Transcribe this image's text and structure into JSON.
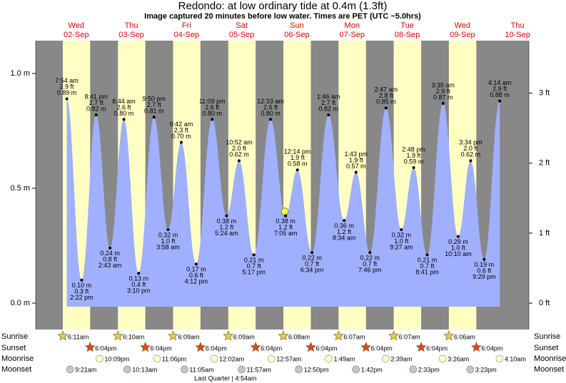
{
  "chart_data": {
    "type": "tide",
    "title": "Redondo: at low  ordinary tide at 0.4m (1.3ft)",
    "subtitle": "Image captured 20 minutes before low water. Times are PET (UTC −5.0hrs)",
    "ylim": [
      -0.115,
      1.143
    ],
    "yticks": [
      {
        "value": 0,
        "label": "0.0 m"
      },
      {
        "value": 0.5,
        "label": "0.5 m"
      },
      {
        "value": 1.0,
        "label": "1.0 m"
      }
    ],
    "y2lim": [
      -0.377,
      3.75
    ],
    "y2ticks": [
      {
        "value": 0,
        "label": "0 ft"
      },
      {
        "value": 1,
        "label": "1 ft"
      },
      {
        "value": 2,
        "label": "2 ft"
      },
      {
        "value": 3,
        "label": "3 ft"
      }
    ],
    "color": "#a0b0ff",
    "night_color": "#888888",
    "day_color": "#ffffc4",
    "row_labels": {
      "sunrise": "Sunrise",
      "sunset": "Sunset",
      "moonrise": "Moonrise",
      "moonset": "Moonset"
    },
    "days": [
      {
        "weekday": "Wed",
        "date": "02-Sep",
        "sunrise": "6:11am",
        "sunset": "6:04pm",
        "moonrise": "10:09pm",
        "moonset": "9:21am",
        "tide_times": [
          "7:54 am",
          "2:22 pm",
          "8:41 pm"
        ],
        "values": [
          0.89,
          0.1,
          0.82
        ],
        "value_labels": [
          "0.89 m",
          "0.10 m",
          "0.82 m"
        ],
        "ft_values": [
          2.9,
          0.3,
          2.7
        ],
        "ft_labels": [
          "2.9 ft",
          "0.3 ft",
          "2.7 ft"
        ]
      },
      {
        "weekday": "Thu",
        "date": "03-Sep",
        "sunrise": "6:10am",
        "sunset": "6:04pm",
        "moonrise": "11:06pm",
        "moonset": "10:13am",
        "tide_times": [
          "2:43 am",
          "8:44 am",
          "3:10 pm",
          "9:50 pm"
        ],
        "values": [
          0.24,
          0.8,
          0.13,
          0.81
        ],
        "value_labels": [
          "0.24 m",
          "0.80 m",
          "0.13 m",
          "0.81 m"
        ],
        "ft_values": [
          0.8,
          2.6,
          0.4,
          2.7
        ],
        "ft_labels": [
          "0.8 ft",
          "2.6 ft",
          "0.4 ft",
          "2.7 ft"
        ]
      },
      {
        "weekday": "Fri",
        "date": "04-Sep",
        "sunrise": "6:09am",
        "sunset": "6:04pm",
        "moonset": "11:05am",
        "tide_times": [
          "3:58 am",
          "9:42 am",
          "4:12 pm",
          "11:09 pm"
        ],
        "values": [
          0.32,
          0.7,
          0.17,
          0.8
        ],
        "value_labels": [
          "0.32 m",
          "0.70 m",
          "0.17 m",
          "0.80 m"
        ],
        "ft_values": [
          1.0,
          2.3,
          0.6,
          2.6
        ],
        "ft_labels": [
          "1.0 ft",
          "2.3 ft",
          "0.6 ft",
          "2.6 ft"
        ]
      },
      {
        "weekday": "Sat",
        "date": "05-Sep",
        "sunrise": "6:09am",
        "sunset": "6:04pm",
        "moonrise": "12:02am",
        "moonset": "11:57am",
        "moon_phase": "Last Quarter | 4:54am",
        "tide_times": [
          "5:24 am",
          "10:52 am",
          "5:17 pm"
        ],
        "values": [
          0.38,
          0.62,
          0.21
        ],
        "value_labels": [
          "0.38 m",
          "0.62 m",
          "0.21 m"
        ],
        "ft_values": [
          1.2,
          2.0,
          0.7
        ],
        "ft_labels": [
          "1.2 ft",
          "2.0 ft",
          "0.7 ft"
        ]
      },
      {
        "weekday": "Sun",
        "date": "06-Sep",
        "sunrise": "6:08am",
        "sunset": "6:04pm",
        "moonrise": "12:57am",
        "moonset": "12:50pm",
        "tide_times": [
          "12:33 am",
          "7:05 am",
          "12:14 pm",
          "6:34 pm"
        ],
        "values": [
          0.8,
          0.38,
          0.58,
          0.22
        ],
        "value_labels": [
          "0.80 m",
          "0.38 m",
          "0.58 m",
          "0.22 m"
        ],
        "ft_values": [
          2.6,
          1.2,
          1.9,
          0.7
        ],
        "ft_labels": [
          "2.6 ft",
          "1.2 ft",
          "1.9 ft",
          "0.7 ft"
        ]
      },
      {
        "weekday": "Mon",
        "date": "07-Sep",
        "sunrise": "6:07am",
        "sunset": "6:04pm",
        "moonrise": "1:49am",
        "moonset": "1:42pm",
        "tide_times": [
          "1:46 am",
          "8:34 am",
          "1:43 pm",
          "7:46 pm"
        ],
        "values": [
          0.82,
          0.36,
          0.57,
          0.22
        ],
        "value_labels": [
          "0.82 m",
          "0.36 m",
          "0.57 m",
          "0.22 m"
        ],
        "ft_values": [
          2.7,
          1.2,
          1.9,
          0.7
        ],
        "ft_labels": [
          "2.7 ft",
          "1.2 ft",
          "1.9 ft",
          "0.7 ft"
        ]
      },
      {
        "weekday": "Tue",
        "date": "08-Sep",
        "sunrise": "6:07am",
        "sunset": "6:04pm",
        "moonrise": "2:39am",
        "moonset": "2:33pm",
        "tide_times": [
          "2:47 am",
          "9:27 am",
          "2:48 pm",
          "8:41 pm"
        ],
        "values": [
          0.85,
          0.32,
          0.59,
          0.21
        ],
        "value_labels": [
          "0.85 m",
          "0.32 m",
          "0.59 m",
          "0.21 m"
        ],
        "ft_values": [
          2.8,
          1.0,
          1.9,
          0.7
        ],
        "ft_labels": [
          "2.8 ft",
          "1.0 ft",
          "1.9 ft",
          "0.7 ft"
        ]
      },
      {
        "weekday": "Wed",
        "date": "09-Sep",
        "sunrise": "6:06am",
        "sunset": "6:04pm",
        "moonrise": "3:26am",
        "moonset": "3:23pm",
        "tide_times": [
          "3:35 am",
          "10:10 am",
          "3:34 pm",
          "9:29 pm"
        ],
        "values": [
          0.87,
          0.29,
          0.62,
          0.19
        ],
        "value_labels": [
          "0.87 m",
          "0.29 m",
          "0.62 m",
          "0.19 m"
        ],
        "ft_values": [
          2.9,
          1.0,
          2.0,
          0.6
        ],
        "ft_labels": [
          "2.9 ft",
          "1.0 ft",
          "2.0 ft",
          "0.6 ft"
        ]
      },
      {
        "weekday": "Thu",
        "date": "10-Sep",
        "moonrise": "4:10am",
        "tide_times": [
          "4:14 am"
        ],
        "values": [
          0.88
        ],
        "value_labels": [
          "0.88 m"
        ],
        "ft_values": [
          2.9
        ],
        "ft_labels": [
          "2.9 ft"
        ]
      }
    ]
  }
}
